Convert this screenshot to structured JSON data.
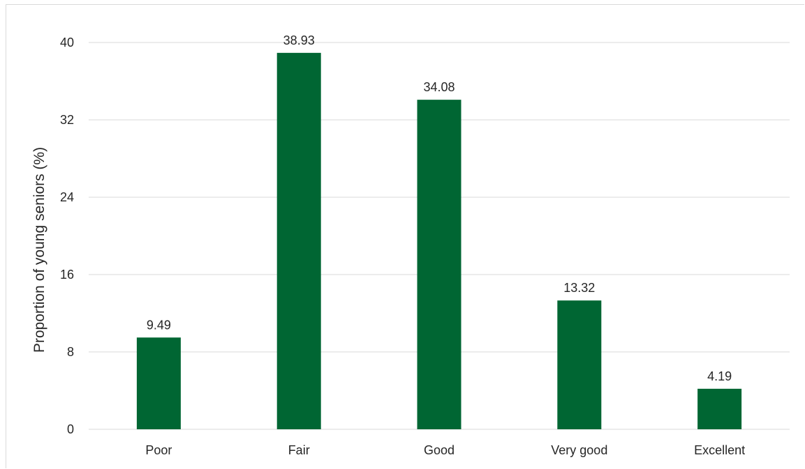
{
  "chart_data": {
    "type": "bar",
    "categories": [
      "Poor",
      "Fair",
      "Good",
      "Very good",
      "Excellent"
    ],
    "values": [
      9.49,
      38.93,
      34.08,
      13.32,
      4.19
    ],
    "data_labels": [
      "9.49",
      "38.93",
      "34.08",
      "13.32",
      "4.19"
    ],
    "ylabel": "Proportion of young seniors (%)",
    "xlabel": "",
    "ylim": [
      0,
      40
    ],
    "yticks": [
      0,
      8,
      16,
      24,
      32,
      40
    ],
    "grid": true,
    "bar_color": "#006633",
    "gridline_color": "#d9d9d9"
  }
}
